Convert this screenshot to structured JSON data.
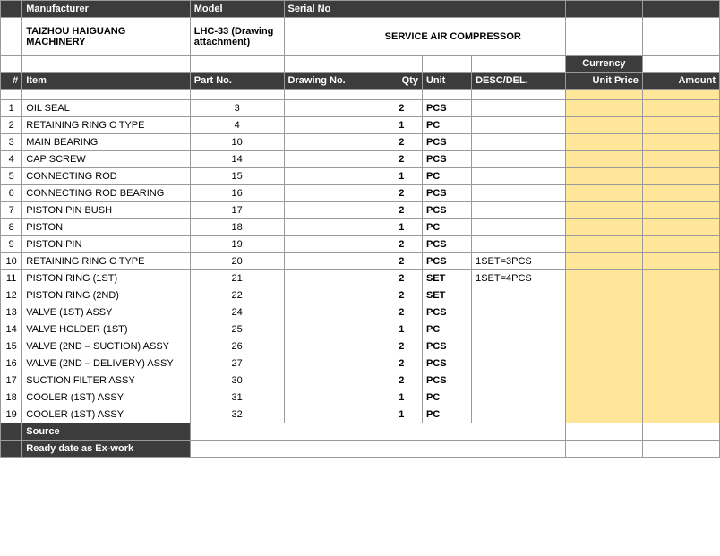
{
  "header": {
    "labels": {
      "manufacturer": "Manufacturer",
      "model": "Model",
      "serial": "Serial No",
      "currency": "Currency"
    },
    "values": {
      "manufacturer": "TAIZHOU HAIGUANG MACHINERY",
      "model": "LHC-33 (Drawing attachment)",
      "serial": "",
      "description": "SERVICE AIR COMPRESSOR"
    }
  },
  "columns": {
    "num": "#",
    "item": "Item",
    "part": "Part No.",
    "drawing": "Drawing No.",
    "qty": "Qty",
    "unit": "Unit",
    "desc": "DESC/DEL.",
    "price": "Unit Price",
    "amount": "Amount"
  },
  "rows": [
    {
      "n": "1",
      "item": "OIL SEAL",
      "part": "3",
      "draw": "",
      "qty": "2",
      "unit": "PCS",
      "desc": ""
    },
    {
      "n": "2",
      "item": "RETAINING RING C TYPE",
      "part": "4",
      "draw": "",
      "qty": "1",
      "unit": "PC",
      "desc": ""
    },
    {
      "n": "3",
      "item": "MAIN BEARING",
      "part": "10",
      "draw": "",
      "qty": "2",
      "unit": "PCS",
      "desc": ""
    },
    {
      "n": "4",
      "item": "CAP SCREW",
      "part": "14",
      "draw": "",
      "qty": "2",
      "unit": "PCS",
      "desc": ""
    },
    {
      "n": "5",
      "item": "CONNECTING ROD",
      "part": "15",
      "draw": "",
      "qty": "1",
      "unit": "PC",
      "desc": ""
    },
    {
      "n": "6",
      "item": "CONNECTING ROD BEARING",
      "part": "16",
      "draw": "",
      "qty": "2",
      "unit": "PCS",
      "desc": ""
    },
    {
      "n": "7",
      "item": "PISTON PIN BUSH",
      "part": "17",
      "draw": "",
      "qty": "2",
      "unit": "PCS",
      "desc": ""
    },
    {
      "n": "8",
      "item": "PISTON",
      "part": "18",
      "draw": "",
      "qty": "1",
      "unit": "PC",
      "desc": ""
    },
    {
      "n": "9",
      "item": "PISTON PIN",
      "part": "19",
      "draw": "",
      "qty": "2",
      "unit": "PCS",
      "desc": ""
    },
    {
      "n": "10",
      "item": "RETAINING RING C TYPE",
      "part": "20",
      "draw": "",
      "qty": "2",
      "unit": "PCS",
      "desc": "1SET=3PCS"
    },
    {
      "n": "11",
      "item": "PISTON RING (1ST)",
      "part": "21",
      "draw": "",
      "qty": "2",
      "unit": "SET",
      "desc": "1SET=4PCS"
    },
    {
      "n": "12",
      "item": "PISTON RING (2ND)",
      "part": "22",
      "draw": "",
      "qty": "2",
      "unit": "SET",
      "desc": ""
    },
    {
      "n": "13",
      "item": "VALVE (1ST) ASSY",
      "part": "24",
      "draw": "",
      "qty": "2",
      "unit": "PCS",
      "desc": ""
    },
    {
      "n": "14",
      "item": "VALVE HOLDER (1ST)",
      "part": "25",
      "draw": "",
      "qty": "1",
      "unit": "PC",
      "desc": ""
    },
    {
      "n": "15",
      "item": "VALVE (2ND – SUCTION) ASSY",
      "part": "26",
      "draw": "",
      "qty": "2",
      "unit": "PCS",
      "desc": ""
    },
    {
      "n": "16",
      "item": "VALVE (2ND – DELIVERY) ASSY",
      "part": "27",
      "draw": "",
      "qty": "2",
      "unit": "PCS",
      "desc": ""
    },
    {
      "n": "17",
      "item": "SUCTION FILTER ASSY",
      "part": "30",
      "draw": "",
      "qty": "2",
      "unit": "PCS",
      "desc": ""
    },
    {
      "n": "18",
      "item": "COOLER (1ST) ASSY",
      "part": "31",
      "draw": "",
      "qty": "1",
      "unit": "PC",
      "desc": ""
    },
    {
      "n": "19",
      "item": "COOLER (1ST) ASSY",
      "part": "32",
      "draw": "",
      "qty": "1",
      "unit": "PC",
      "desc": ""
    }
  ],
  "footer": {
    "source": "Source",
    "ready": "Ready date as Ex-work"
  },
  "colors": {
    "header_bg": "#3c3c3c",
    "header_fg": "#ffffff",
    "highlight_bg": "#ffe699",
    "border": "#9a9a9a"
  }
}
